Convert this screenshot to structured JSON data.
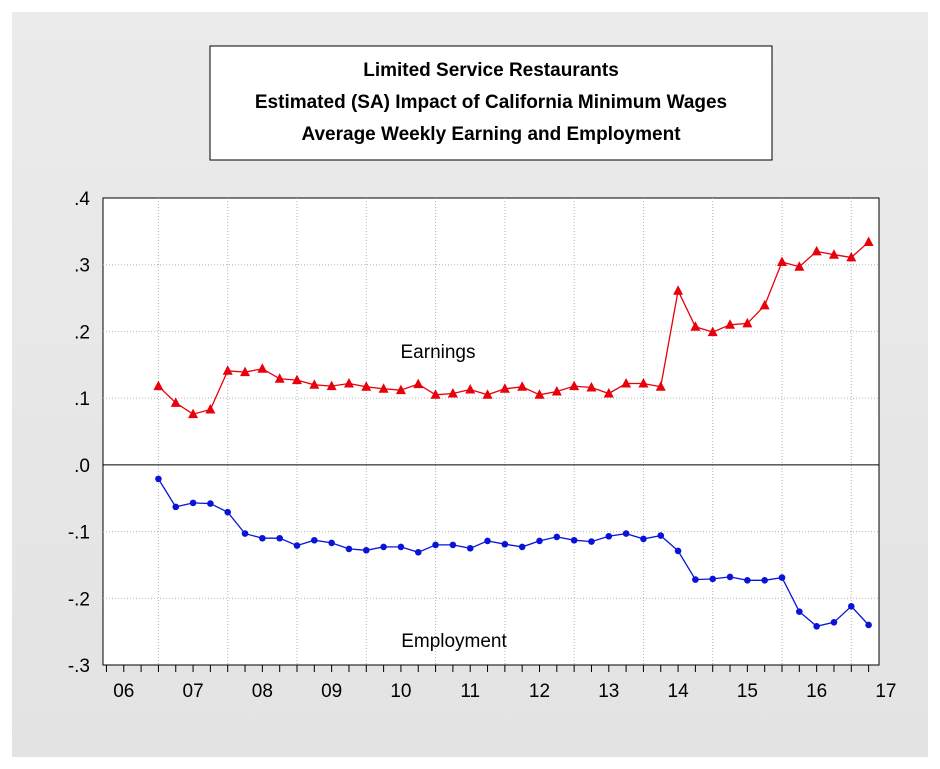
{
  "chart_data": {
    "type": "line",
    "title_lines": [
      "Limited Service Restaurants",
      "Estimated (SA) Impact of California Minimum Wages",
      "Average Weekly Earning and Employment"
    ],
    "x_tick_labels": [
      "06",
      "07",
      "08",
      "09",
      "10",
      "11",
      "12",
      "13",
      "14",
      "15",
      "16",
      "17"
    ],
    "y_tick_labels": [
      ".4",
      ".3",
      ".2",
      ".1",
      ".0",
      "-.1",
      "-.2",
      "-.3"
    ],
    "y_tick_values": [
      0.4,
      0.3,
      0.2,
      0.1,
      0.0,
      -0.1,
      -0.2,
      -0.3
    ],
    "ylim": [
      -0.3,
      0.4
    ],
    "x_start_year": 2006,
    "x_end_year": 2017,
    "points_per_year": 4,
    "first_period": "2007Q1",
    "series": [
      {
        "name": "Earnings",
        "color": "#e8000b",
        "marker": "triangle",
        "values": [
          0.118,
          0.093,
          0.076,
          0.083,
          0.141,
          0.139,
          0.144,
          0.129,
          0.127,
          0.12,
          0.118,
          0.122,
          0.117,
          0.114,
          0.112,
          0.121,
          0.105,
          0.107,
          0.113,
          0.105,
          0.114,
          0.117,
          0.105,
          0.11,
          0.118,
          0.116,
          0.107,
          0.122,
          0.122,
          0.117,
          0.261,
          0.207,
          0.199,
          0.21,
          0.212,
          0.239,
          0.304,
          0.297,
          0.32,
          0.315,
          0.311,
          0.334
        ]
      },
      {
        "name": "Employment",
        "color": "#0a14d8",
        "marker": "circle",
        "values": [
          -0.021,
          -0.063,
          -0.057,
          -0.058,
          -0.071,
          -0.103,
          -0.11,
          -0.11,
          -0.121,
          -0.113,
          -0.117,
          -0.126,
          -0.128,
          -0.123,
          -0.123,
          -0.131,
          -0.12,
          -0.12,
          -0.125,
          -0.114,
          -0.119,
          -0.123,
          -0.114,
          -0.108,
          -0.113,
          -0.115,
          -0.107,
          -0.103,
          -0.111,
          -0.106,
          -0.129,
          -0.172,
          -0.171,
          -0.168,
          -0.173,
          -0.173,
          -0.169,
          -0.22,
          -0.242,
          -0.236,
          -0.212,
          -0.24
        ]
      }
    ],
    "annotations": [
      {
        "text": "Earnings",
        "series": "Earnings"
      },
      {
        "text": "Employment",
        "series": "Employment"
      }
    ],
    "grid": true
  }
}
